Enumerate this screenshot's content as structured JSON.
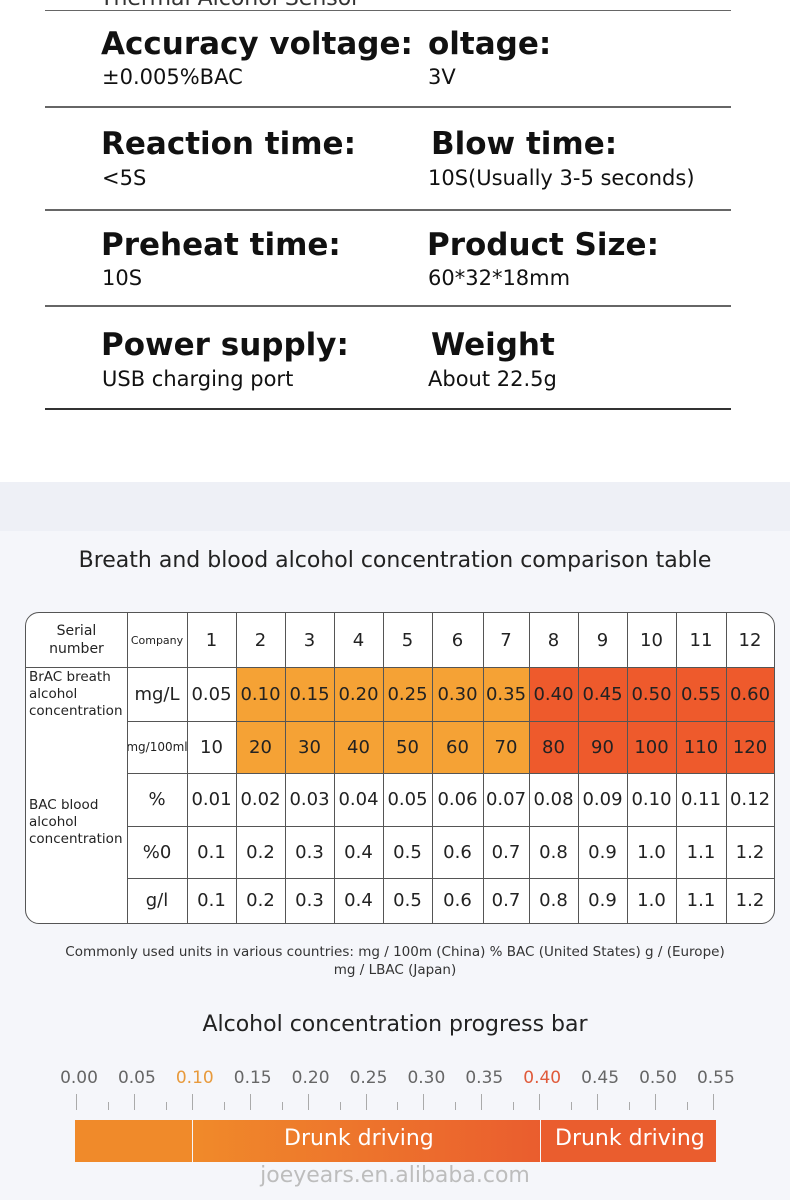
{
  "specs": {
    "top_partial": "Thermal Alcohol Sensor",
    "rows": [
      {
        "left_label": "Accuracy voltage:",
        "left_value": "±0.005%BAC",
        "right_label": "oltage:",
        "right_value": "3V"
      },
      {
        "left_label": "Reaction time:",
        "left_value": "<5S",
        "right_label": "Blow time:",
        "right_value": "10S(Usually 3-5 seconds)"
      },
      {
        "left_label": "Preheat time:",
        "left_value": "10S",
        "right_label": "Product Size:",
        "right_value": "60*32*18mm"
      },
      {
        "left_label": "Power supply:",
        "left_value": "USB charging port",
        "right_label": "Weight",
        "right_value": "About 22.5g"
      }
    ]
  },
  "table": {
    "title": "Breath and blood alcohol concentration comparison table",
    "serial_header": "Serial\nnumber",
    "company_header": "Company",
    "serials": [
      "1",
      "2",
      "3",
      "4",
      "5",
      "6",
      "7",
      "8",
      "9",
      "10",
      "11",
      "12"
    ],
    "brac_label": "BrAC breath\nalcohol\nconcentration",
    "bac_label": "BAC blood\nalcohol\nconcentration",
    "rows": [
      {
        "unit": "mg/L",
        "values": [
          "0.05",
          "0.10",
          "0.15",
          "0.20",
          "0.25",
          "0.30",
          "0.35",
          "0.40",
          "0.45",
          "0.50",
          "0.55",
          "0.60"
        ]
      },
      {
        "unit": "mg/100ml",
        "values": [
          "10",
          "20",
          "30",
          "40",
          "50",
          "60",
          "70",
          "80",
          "90",
          "100",
          "110",
          "120"
        ]
      },
      {
        "unit": "%",
        "values": [
          "0.01",
          "0.02",
          "0.03",
          "0.04",
          "0.05",
          "0.06",
          "0.07",
          "0.08",
          "0.09",
          "0.10",
          "0.11",
          "0.12"
        ]
      },
      {
        "unit": "%0",
        "values": [
          "0.1",
          "0.2",
          "0.3",
          "0.4",
          "0.5",
          "0.6",
          "0.7",
          "0.8",
          "0.9",
          "1.0",
          "1.1",
          "1.2"
        ]
      },
      {
        "unit": "g/l",
        "values": [
          "0.1",
          "0.2",
          "0.3",
          "0.4",
          "0.5",
          "0.6",
          "0.7",
          "0.8",
          "0.9",
          "1.0",
          "1.1",
          "1.2"
        ]
      }
    ],
    "note_line1": "Commonly used units in various countries: mg / 100m (China)   % BAC (United States)    g / (Europe)",
    "note_line2": "mg / LBAC (Japan)"
  },
  "progress": {
    "title": "Alcohol concentration progress bar",
    "ticks": [
      "0.00",
      "0.05",
      "0.10",
      "0.15",
      "0.20",
      "0.25",
      "0.30",
      "0.35",
      "0.40",
      "0.45",
      "0.50",
      "0.55"
    ],
    "highlight_ticks": [
      "0.10",
      "0.40"
    ],
    "segment1_label": "Drunk driving",
    "segment2_label": "Drunk driving"
  },
  "colors": {
    "orange": "#f5a235",
    "red": "#ee5a2c",
    "bar_orange": "#f08a2a",
    "bar_red": "#ea5d2e",
    "highlight_tick": "#e89a3c",
    "highlight_tick_red": "#e05a3a"
  },
  "watermark": "joeyears.en.alibaba.com"
}
